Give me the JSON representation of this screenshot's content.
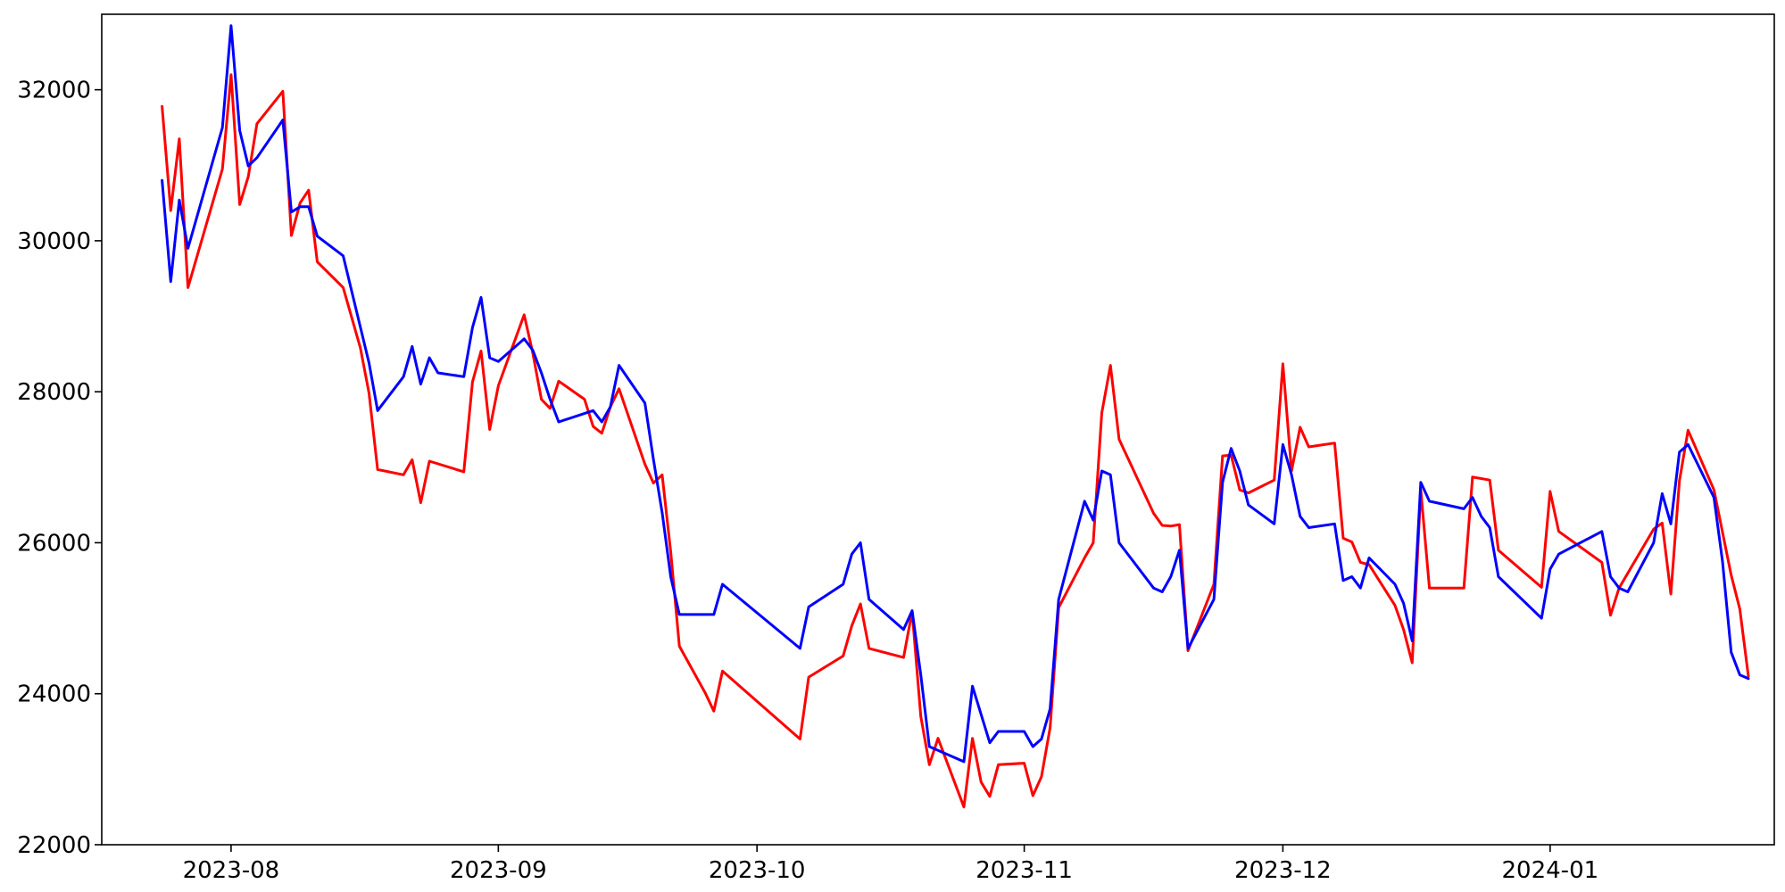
{
  "chart_data": {
    "type": "line",
    "title": "",
    "xlabel": "",
    "ylabel": "",
    "x_axis_type": "date",
    "xlim": [
      "2023-07-17",
      "2024-01-27"
    ],
    "ylim": [
      22000,
      33000
    ],
    "grid": false,
    "x_ticks": [
      {
        "value": "2023-08-01",
        "label": "2023-08"
      },
      {
        "value": "2023-09-01",
        "label": "2023-09"
      },
      {
        "value": "2023-10-01",
        "label": "2023-10"
      },
      {
        "value": "2023-11-01",
        "label": "2023-11"
      },
      {
        "value": "2023-12-01",
        "label": "2023-12"
      },
      {
        "value": "2024-01-01",
        "label": "2024-01"
      }
    ],
    "y_ticks": [
      {
        "value": 22000,
        "label": "22000"
      },
      {
        "value": 24000,
        "label": "24000"
      },
      {
        "value": 26000,
        "label": "26000"
      },
      {
        "value": 28000,
        "label": "28000"
      },
      {
        "value": 30000,
        "label": "30000"
      },
      {
        "value": 32000,
        "label": "32000"
      }
    ],
    "series": [
      {
        "color": "#ff0000",
        "points": [
          [
            "2023-07-24",
            31780
          ],
          [
            "2023-07-25",
            30400
          ],
          [
            "2023-07-26",
            31350
          ],
          [
            "2023-07-27",
            29380
          ],
          [
            "2023-07-31",
            30950
          ],
          [
            "2023-08-01",
            32200
          ],
          [
            "2023-08-02",
            30480
          ],
          [
            "2023-08-03",
            30850
          ],
          [
            "2023-08-04",
            31550
          ],
          [
            "2023-08-07",
            31980
          ],
          [
            "2023-08-08",
            30070
          ],
          [
            "2023-08-09",
            30500
          ],
          [
            "2023-08-10",
            30670
          ],
          [
            "2023-08-11",
            29720
          ],
          [
            "2023-08-14",
            29380
          ],
          [
            "2023-08-16",
            28580
          ],
          [
            "2023-08-17",
            27980
          ],
          [
            "2023-08-18",
            26970
          ],
          [
            "2023-08-21",
            26900
          ],
          [
            "2023-08-22",
            27100
          ],
          [
            "2023-08-23",
            26530
          ],
          [
            "2023-08-24",
            27080
          ],
          [
            "2023-08-28",
            26940
          ],
          [
            "2023-08-29",
            28130
          ],
          [
            "2023-08-30",
            28540
          ],
          [
            "2023-08-31",
            27500
          ],
          [
            "2023-09-01",
            28080
          ],
          [
            "2023-09-04",
            29020
          ],
          [
            "2023-09-05",
            28510
          ],
          [
            "2023-09-06",
            27900
          ],
          [
            "2023-09-07",
            27780
          ],
          [
            "2023-09-08",
            28140
          ],
          [
            "2023-09-11",
            27900
          ],
          [
            "2023-09-12",
            27540
          ],
          [
            "2023-09-13",
            27450
          ],
          [
            "2023-09-14",
            27800
          ],
          [
            "2023-09-15",
            28040
          ],
          [
            "2023-09-18",
            27040
          ],
          [
            "2023-09-19",
            26790
          ],
          [
            "2023-09-20",
            26900
          ],
          [
            "2023-09-21",
            25880
          ],
          [
            "2023-09-22",
            24630
          ],
          [
            "2023-09-25",
            24010
          ],
          [
            "2023-09-26",
            23770
          ],
          [
            "2023-09-27",
            24300
          ],
          [
            "2023-10-06",
            23400
          ],
          [
            "2023-10-07",
            24220
          ],
          [
            "2023-10-11",
            24500
          ],
          [
            "2023-10-12",
            24900
          ],
          [
            "2023-10-13",
            25190
          ],
          [
            "2023-10-14",
            24600
          ],
          [
            "2023-10-18",
            24480
          ],
          [
            "2023-10-19",
            25090
          ],
          [
            "2023-10-20",
            23700
          ],
          [
            "2023-10-21",
            23060
          ],
          [
            "2023-10-22",
            23410
          ],
          [
            "2023-10-25",
            22500
          ],
          [
            "2023-10-26",
            23410
          ],
          [
            "2023-10-27",
            22830
          ],
          [
            "2023-10-28",
            22640
          ],
          [
            "2023-10-29",
            23060
          ],
          [
            "2023-11-01",
            23080
          ],
          [
            "2023-11-02",
            22650
          ],
          [
            "2023-11-03",
            22900
          ],
          [
            "2023-11-04",
            23550
          ],
          [
            "2023-11-05",
            25140
          ],
          [
            "2023-11-08",
            25800
          ],
          [
            "2023-11-09",
            26000
          ],
          [
            "2023-11-10",
            27720
          ],
          [
            "2023-11-11",
            28350
          ],
          [
            "2023-11-12",
            27370
          ],
          [
            "2023-11-16",
            26390
          ],
          [
            "2023-11-17",
            26230
          ],
          [
            "2023-11-18",
            26220
          ],
          [
            "2023-11-19",
            26240
          ],
          [
            "2023-11-20",
            24570
          ],
          [
            "2023-11-23",
            25450
          ],
          [
            "2023-11-24",
            27150
          ],
          [
            "2023-11-25",
            27160
          ],
          [
            "2023-11-26",
            26700
          ],
          [
            "2023-11-27",
            26660
          ],
          [
            "2023-11-30",
            26830
          ],
          [
            "2023-12-01",
            28370
          ],
          [
            "2023-12-02",
            26950
          ],
          [
            "2023-12-03",
            27530
          ],
          [
            "2023-12-04",
            27270
          ],
          [
            "2023-12-07",
            27320
          ],
          [
            "2023-12-08",
            26060
          ],
          [
            "2023-12-09",
            26010
          ],
          [
            "2023-12-10",
            25740
          ],
          [
            "2023-12-11",
            25710
          ],
          [
            "2023-12-14",
            25170
          ],
          [
            "2023-12-15",
            24850
          ],
          [
            "2023-12-16",
            24410
          ],
          [
            "2023-12-17",
            26700
          ],
          [
            "2023-12-18",
            25400
          ],
          [
            "2023-12-22",
            25400
          ],
          [
            "2023-12-23",
            26870
          ],
          [
            "2023-12-25",
            26830
          ],
          [
            "2023-12-26",
            25900
          ],
          [
            "2023-12-31",
            25410
          ],
          [
            "2024-01-01",
            26680
          ],
          [
            "2024-01-02",
            26150
          ],
          [
            "2024-01-07",
            25740
          ],
          [
            "2024-01-08",
            25040
          ],
          [
            "2024-01-09",
            25400
          ],
          [
            "2024-01-13",
            26180
          ],
          [
            "2024-01-14",
            26260
          ],
          [
            "2024-01-15",
            25320
          ],
          [
            "2024-01-16",
            26820
          ],
          [
            "2024-01-17",
            27490
          ],
          [
            "2024-01-20",
            26700
          ],
          [
            "2024-01-22",
            25570
          ],
          [
            "2024-01-23",
            25120
          ],
          [
            "2024-01-24",
            24230
          ]
        ]
      },
      {
        "color": "#0000ff",
        "points": [
          [
            "2023-07-24",
            30800
          ],
          [
            "2023-07-25",
            29460
          ],
          [
            "2023-07-26",
            30540
          ],
          [
            "2023-07-27",
            29900
          ],
          [
            "2023-07-31",
            31500
          ],
          [
            "2023-08-01",
            32850
          ],
          [
            "2023-08-02",
            31460
          ],
          [
            "2023-08-03",
            30990
          ],
          [
            "2023-08-04",
            31100
          ],
          [
            "2023-08-07",
            31600
          ],
          [
            "2023-08-08",
            30380
          ],
          [
            "2023-08-09",
            30450
          ],
          [
            "2023-08-10",
            30450
          ],
          [
            "2023-08-11",
            30060
          ],
          [
            "2023-08-14",
            29800
          ],
          [
            "2023-08-17",
            28380
          ],
          [
            "2023-08-18",
            27750
          ],
          [
            "2023-08-21",
            28200
          ],
          [
            "2023-08-22",
            28600
          ],
          [
            "2023-08-23",
            28100
          ],
          [
            "2023-08-24",
            28450
          ],
          [
            "2023-08-25",
            28250
          ],
          [
            "2023-08-28",
            28200
          ],
          [
            "2023-08-29",
            28850
          ],
          [
            "2023-08-30",
            29250
          ],
          [
            "2023-08-31",
            28450
          ],
          [
            "2023-09-01",
            28400
          ],
          [
            "2023-09-04",
            28700
          ],
          [
            "2023-09-05",
            28550
          ],
          [
            "2023-09-06",
            28250
          ],
          [
            "2023-09-07",
            27900
          ],
          [
            "2023-09-08",
            27600
          ],
          [
            "2023-09-12",
            27750
          ],
          [
            "2023-09-13",
            27600
          ],
          [
            "2023-09-14",
            27800
          ],
          [
            "2023-09-15",
            28350
          ],
          [
            "2023-09-18",
            27850
          ],
          [
            "2023-09-19",
            27100
          ],
          [
            "2023-09-20",
            26400
          ],
          [
            "2023-09-21",
            25550
          ],
          [
            "2023-09-22",
            25050
          ],
          [
            "2023-09-26",
            25050
          ],
          [
            "2023-09-27",
            25450
          ],
          [
            "2023-10-06",
            24600
          ],
          [
            "2023-10-07",
            25150
          ],
          [
            "2023-10-11",
            25450
          ],
          [
            "2023-10-12",
            25850
          ],
          [
            "2023-10-13",
            26000
          ],
          [
            "2023-10-14",
            25250
          ],
          [
            "2023-10-18",
            24850
          ],
          [
            "2023-10-19",
            25100
          ],
          [
            "2023-10-20",
            24250
          ],
          [
            "2023-10-21",
            23300
          ],
          [
            "2023-10-25",
            23100
          ],
          [
            "2023-10-26",
            24100
          ],
          [
            "2023-10-28",
            23350
          ],
          [
            "2023-10-29",
            23500
          ],
          [
            "2023-11-01",
            23500
          ],
          [
            "2023-11-02",
            23300
          ],
          [
            "2023-11-03",
            23400
          ],
          [
            "2023-11-04",
            23800
          ],
          [
            "2023-11-05",
            25250
          ],
          [
            "2023-11-08",
            26550
          ],
          [
            "2023-11-09",
            26300
          ],
          [
            "2023-11-10",
            26950
          ],
          [
            "2023-11-11",
            26900
          ],
          [
            "2023-11-12",
            26000
          ],
          [
            "2023-11-16",
            25400
          ],
          [
            "2023-11-17",
            25350
          ],
          [
            "2023-11-18",
            25550
          ],
          [
            "2023-11-19",
            25900
          ],
          [
            "2023-11-20",
            24600
          ],
          [
            "2023-11-23",
            25250
          ],
          [
            "2023-11-24",
            26800
          ],
          [
            "2023-11-25",
            27250
          ],
          [
            "2023-11-26",
            26950
          ],
          [
            "2023-11-27",
            26500
          ],
          [
            "2023-11-30",
            26250
          ],
          [
            "2023-12-01",
            27300
          ],
          [
            "2023-12-02",
            26900
          ],
          [
            "2023-12-03",
            26350
          ],
          [
            "2023-12-04",
            26200
          ],
          [
            "2023-12-07",
            26250
          ],
          [
            "2023-12-08",
            25500
          ],
          [
            "2023-12-09",
            25550
          ],
          [
            "2023-12-10",
            25400
          ],
          [
            "2023-12-11",
            25800
          ],
          [
            "2023-12-14",
            25450
          ],
          [
            "2023-12-15",
            25200
          ],
          [
            "2023-12-16",
            24700
          ],
          [
            "2023-12-17",
            26800
          ],
          [
            "2023-12-18",
            26550
          ],
          [
            "2023-12-22",
            26450
          ],
          [
            "2023-12-23",
            26600
          ],
          [
            "2023-12-24",
            26350
          ],
          [
            "2023-12-25",
            26200
          ],
          [
            "2023-12-26",
            25550
          ],
          [
            "2023-12-31",
            25000
          ],
          [
            "2024-01-01",
            25650
          ],
          [
            "2024-01-02",
            25850
          ],
          [
            "2024-01-07",
            26150
          ],
          [
            "2024-01-08",
            25550
          ],
          [
            "2024-01-09",
            25400
          ],
          [
            "2024-01-10",
            25350
          ],
          [
            "2024-01-13",
            26000
          ],
          [
            "2024-01-14",
            26650
          ],
          [
            "2024-01-15",
            26250
          ],
          [
            "2024-01-16",
            27200
          ],
          [
            "2024-01-17",
            27300
          ],
          [
            "2024-01-20",
            26600
          ],
          [
            "2024-01-21",
            25750
          ],
          [
            "2024-01-22",
            24550
          ],
          [
            "2024-01-23",
            24250
          ],
          [
            "2024-01-24",
            24200
          ]
        ]
      }
    ]
  }
}
